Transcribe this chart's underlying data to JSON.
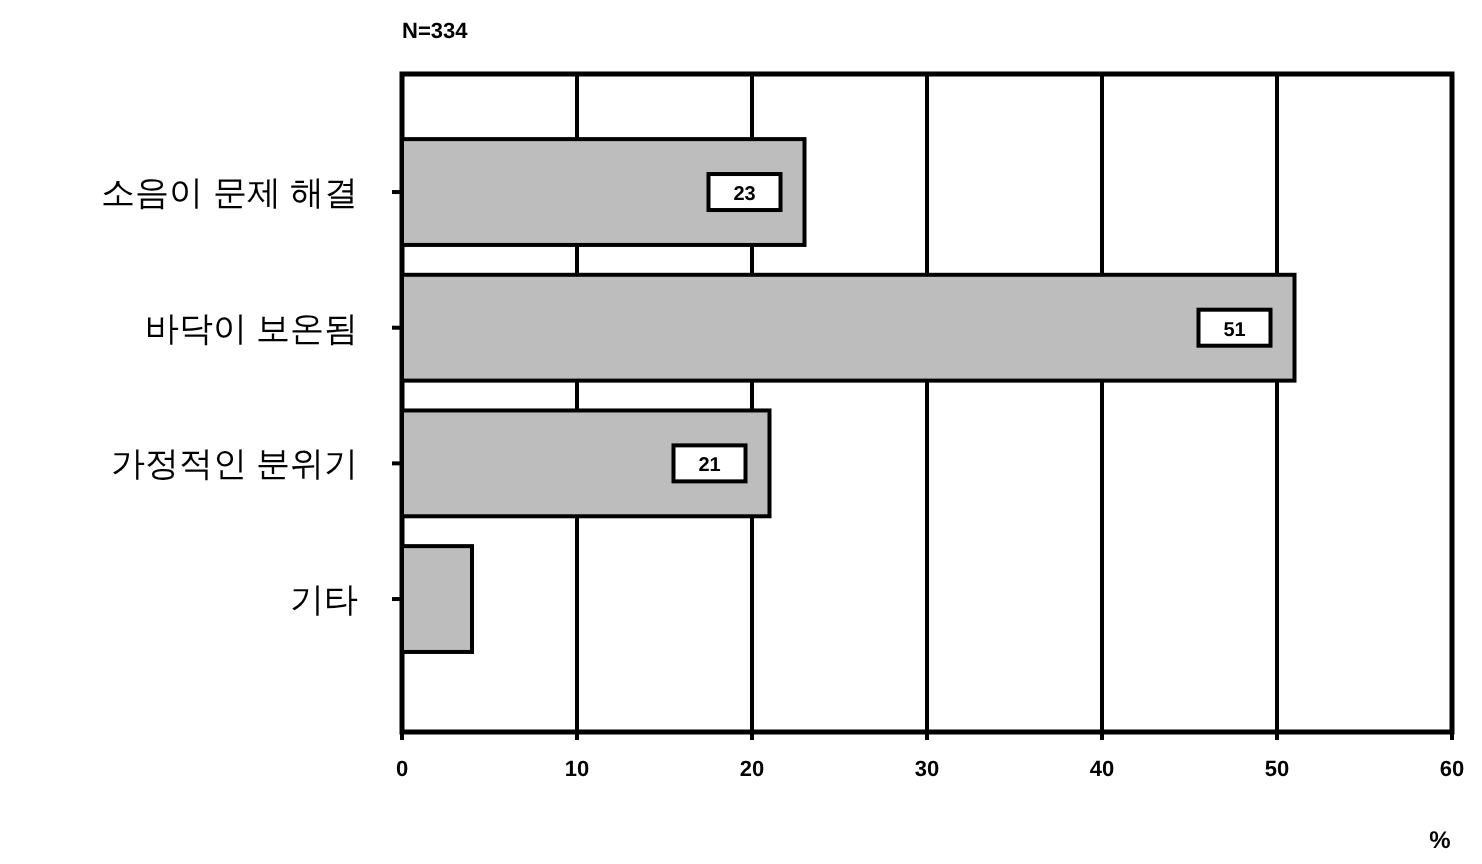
{
  "chart_data": {
    "type": "bar",
    "orientation": "horizontal",
    "subtitle": "N=334",
    "xlabel": "%",
    "categories": [
      "소음이 문제 해결",
      "바닥이 보온됨",
      "가정적인 분위기",
      "기타"
    ],
    "values": [
      23,
      51,
      21,
      4
    ],
    "value_labels": [
      "23",
      "51",
      "21",
      null
    ],
    "color": "#bdbdbd",
    "xlim": [
      0,
      60
    ],
    "xticks": [
      0,
      10,
      20,
      30,
      40,
      50,
      60
    ],
    "grid": "x"
  }
}
